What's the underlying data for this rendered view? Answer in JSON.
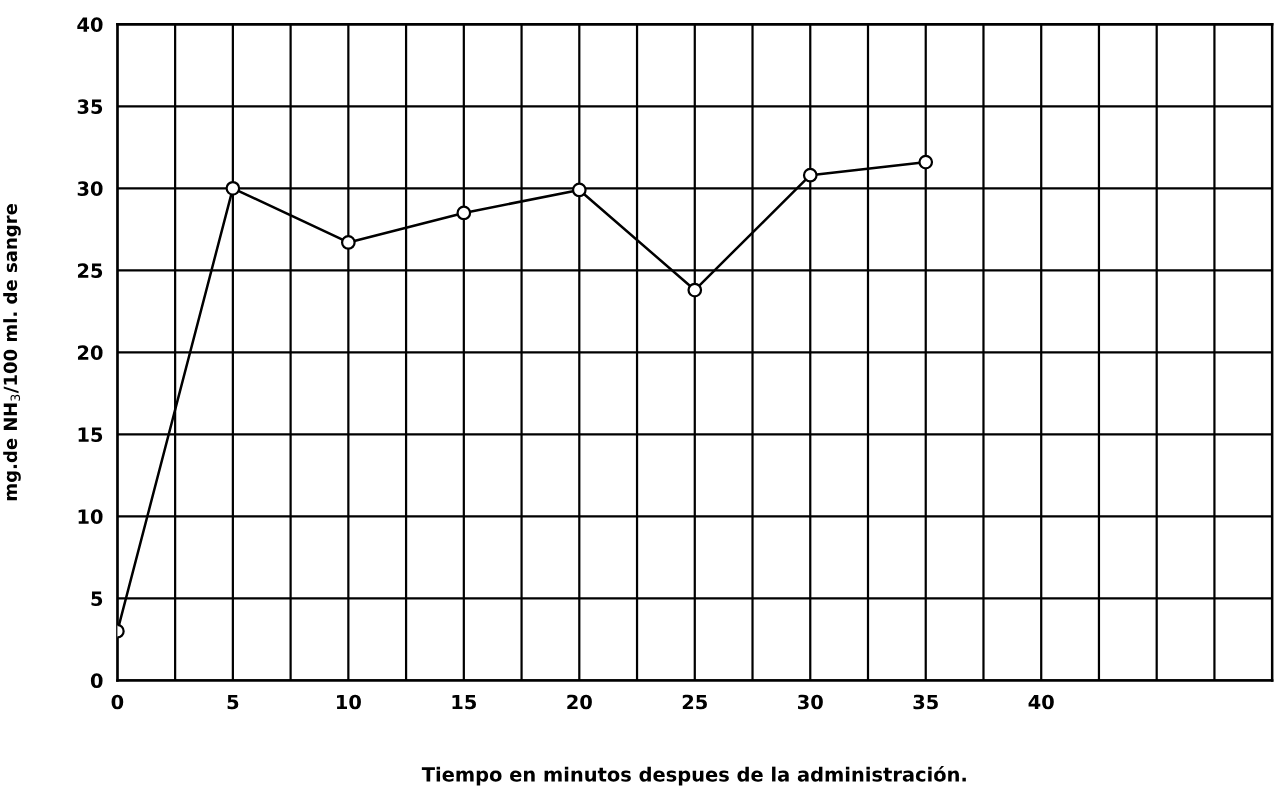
{
  "chart_data": {
    "type": "line",
    "xlabel": "Tiempo en minutos despues de la administración.",
    "ylabel": "mg.de NH$_{3}$/100 ml. de sangre",
    "x": [
      0,
      5,
      10,
      15,
      20,
      25,
      30,
      35
    ],
    "series": [
      {
        "color": "#000000",
        "values": [
          3,
          30,
          26.7,
          28.5,
          29.9,
          23.8,
          30.8,
          31.6
        ]
      }
    ],
    "xlim": [
      0,
      50
    ],
    "ylim": [
      0,
      40
    ],
    "xticks": [
      0,
      {
        "value": 2.5,
        "label": null
      },
      5,
      {
        "value": 7.5,
        "label": null
      },
      10,
      {
        "value": 12.5,
        "label": null
      },
      15,
      {
        "value": 17.5,
        "label": null
      },
      20,
      {
        "value": 22.5,
        "label": null
      },
      25,
      {
        "value": 27.5,
        "label": null
      },
      30,
      {
        "value": 32.5,
        "label": null
      },
      35,
      {
        "value": 37.5,
        "label": null
      },
      40,
      {
        "value": 42.5,
        "label": null
      },
      {
        "value": 45,
        "label": null
      },
      {
        "value": 47.5,
        "label": null
      }
    ],
    "yticks": [
      0,
      5,
      10,
      15,
      20,
      25,
      30,
      35,
      40
    ],
    "grid": true,
    "marker": "circle",
    "line_style": "solid",
    "legend": false
  }
}
